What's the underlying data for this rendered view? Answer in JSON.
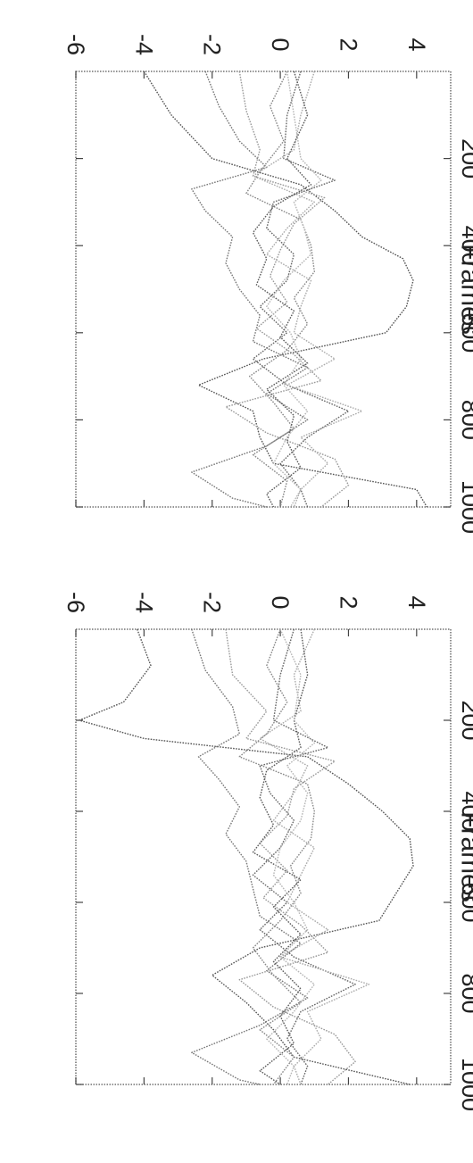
{
  "chart_data": [
    {
      "type": "line",
      "xlabel": "Frames",
      "ylabel": "",
      "xlim": [
        0,
        1000
      ],
      "ylim": [
        -6,
        5
      ],
      "xticks": [
        "200",
        "400",
        "600",
        "800",
        "1000"
      ],
      "yticks": [
        "-6",
        "-4",
        "-2",
        "0",
        "2",
        "4"
      ],
      "grid": false,
      "orientation": "rotated 90 degrees clockwise",
      "series": [
        {
          "color": "#555555",
          "x": [
            0,
            100,
            200,
            260,
            320,
            380,
            430,
            480,
            540,
            600,
            660,
            720,
            780,
            840,
            900,
            960,
            1000
          ],
          "y": [
            -4.0,
            -3.2,
            -2.0,
            0.6,
            1.6,
            2.4,
            3.6,
            3.9,
            3.7,
            3.1,
            -0.5,
            -2.4,
            -0.8,
            -0.6,
            -0.2,
            4.0,
            4.3
          ]
        },
        {
          "color": "#777777",
          "x": [
            0,
            80,
            160,
            220,
            270,
            320,
            380,
            440,
            500,
            560,
            620,
            680,
            740,
            800,
            860,
            920,
            980,
            1000
          ],
          "y": [
            -2.2,
            -1.8,
            -1.2,
            -0.4,
            -2.6,
            -2.2,
            -1.4,
            -1.6,
            -1.2,
            -0.6,
            -0.8,
            0.8,
            -0.4,
            0.8,
            -0.4,
            -2.6,
            -1.4,
            -0.4
          ]
        },
        {
          "color": "#999999",
          "x": [
            0,
            90,
            180,
            240,
            290,
            350,
            410,
            470,
            530,
            590,
            650,
            710,
            770,
            830,
            890,
            950,
            1000
          ],
          "y": [
            -1.2,
            -1.0,
            -0.6,
            -0.8,
            1.3,
            0.4,
            0.0,
            -0.3,
            0.2,
            -0.7,
            0.4,
            1.2,
            -1.6,
            -0.4,
            1.6,
            2.0,
            1.2
          ]
        },
        {
          "color": "#666666",
          "x": [
            0,
            100,
            200,
            250,
            300,
            360,
            420,
            480,
            540,
            600,
            660,
            720,
            780,
            840,
            900,
            960,
            1000
          ],
          "y": [
            0.6,
            0.2,
            0.1,
            1.6,
            -0.2,
            -0.4,
            0.4,
            0.2,
            -0.6,
            0.2,
            -0.8,
            0.2,
            2.0,
            0.8,
            0.0,
            0.6,
            0.8
          ]
        },
        {
          "color": "#888888",
          "x": [
            0,
            80,
            160,
            230,
            280,
            340,
            400,
            460,
            520,
            580,
            640,
            700,
            760,
            820,
            880,
            940,
            1000
          ],
          "y": [
            0.2,
            -0.3,
            0.1,
            -0.6,
            -1.0,
            0.6,
            0.9,
            1.0,
            0.4,
            0.8,
            0.2,
            -0.9,
            -0.2,
            0.4,
            -0.8,
            0.2,
            0.0
          ]
        },
        {
          "color": "#aaaaaa",
          "x": [
            0,
            100,
            180,
            240,
            300,
            360,
            420,
            480,
            540,
            600,
            660,
            720,
            780,
            840,
            900,
            960,
            1000
          ],
          "y": [
            1.0,
            0.6,
            0.4,
            -0.8,
            1.0,
            0.2,
            -0.4,
            0.9,
            0.6,
            0.4,
            1.6,
            0.2,
            2.4,
            0.6,
            1.4,
            0.6,
            0.4
          ]
        },
        {
          "color": "#5a5a5a",
          "x": [
            0,
            100,
            200,
            260,
            310,
            370,
            430,
            490,
            550,
            610,
            670,
            730,
            790,
            850,
            910,
            970,
            1000
          ],
          "y": [
            0.4,
            0.8,
            0.2,
            0.9,
            -0.2,
            -0.8,
            -0.4,
            -0.7,
            0.4,
            0.0,
            0.8,
            -0.4,
            0.4,
            0.2,
            0.6,
            -0.4,
            -0.2
          ]
        },
        {
          "color": "#b5b5b5",
          "x": [
            0,
            100,
            200,
            250,
            300,
            360,
            420,
            480,
            540,
            600,
            660,
            720,
            780,
            840,
            900,
            960,
            1000
          ],
          "y": [
            0.2,
            0.4,
            0.6,
            1.2,
            0.4,
            0.7,
            0.9,
            0.1,
            -0.4,
            0.3,
            0.6,
            0.1,
            0.8,
            0.2,
            -0.2,
            0.6,
            0.3
          ]
        }
      ]
    },
    {
      "type": "line",
      "xlabel": "Frames",
      "ylabel": "",
      "xlim": [
        0,
        1000
      ],
      "ylim": [
        -6,
        5
      ],
      "xticks": [
        "200",
        "400",
        "600",
        "800",
        "1000"
      ],
      "yticks": [
        "-6",
        "-4",
        "-2",
        "0",
        "2",
        "4"
      ],
      "grid": false,
      "orientation": "rotated 90 degrees clockwise",
      "series": [
        {
          "color": "#555555",
          "x": [
            0,
            80,
            160,
            200,
            240,
            280,
            340,
            400,
            460,
            520,
            580,
            640,
            700,
            760,
            820,
            880,
            940,
            1000
          ],
          "y": [
            -4.2,
            -3.8,
            -4.6,
            -5.9,
            -4.0,
            0.8,
            2.0,
            3.0,
            3.8,
            3.9,
            3.4,
            2.9,
            -0.6,
            -2.0,
            -1.0,
            -0.2,
            0.4,
            3.8
          ]
        },
        {
          "color": "#777777",
          "x": [
            0,
            90,
            170,
            230,
            280,
            330,
            390,
            450,
            510,
            570,
            630,
            690,
            750,
            810,
            870,
            930,
            990,
            1000
          ],
          "y": [
            -2.6,
            -2.2,
            -1.4,
            -1.2,
            -2.4,
            -1.8,
            -1.2,
            -1.6,
            -1.0,
            -0.8,
            -0.6,
            0.6,
            -0.4,
            0.8,
            -0.6,
            -2.6,
            -1.2,
            -0.6
          ]
        },
        {
          "color": "#999999",
          "x": [
            0,
            100,
            180,
            240,
            290,
            350,
            410,
            470,
            530,
            590,
            650,
            710,
            770,
            830,
            890,
            950,
            1000
          ],
          "y": [
            -1.6,
            -1.4,
            -0.4,
            -1.0,
            1.6,
            0.4,
            0.2,
            -0.6,
            0.2,
            -0.5,
            0.6,
            1.4,
            -1.2,
            -0.2,
            1.6,
            2.2,
            1.4
          ]
        },
        {
          "color": "#666666",
          "x": [
            0,
            100,
            200,
            260,
            300,
            360,
            420,
            480,
            540,
            600,
            660,
            720,
            780,
            840,
            900,
            960,
            1000
          ],
          "y": [
            0.4,
            0.0,
            -0.2,
            1.4,
            -0.6,
            -0.3,
            0.4,
            0.0,
            -0.8,
            0.2,
            -0.6,
            0.4,
            2.2,
            0.6,
            0.2,
            0.8,
            0.6
          ]
        },
        {
          "color": "#888888",
          "x": [
            0,
            80,
            160,
            230,
            280,
            340,
            400,
            460,
            520,
            580,
            640,
            700,
            760,
            820,
            880,
            940,
            1000
          ],
          "y": [
            0.0,
            -0.4,
            0.2,
            -0.4,
            -1.2,
            0.8,
            1.0,
            0.9,
            0.3,
            0.6,
            0.0,
            -0.8,
            -0.2,
            0.6,
            -0.6,
            0.4,
            -0.2
          ]
        },
        {
          "color": "#aaaaaa",
          "x": [
            0,
            100,
            180,
            240,
            300,
            360,
            420,
            480,
            540,
            600,
            660,
            720,
            780,
            840,
            900,
            960,
            1000
          ],
          "y": [
            1.0,
            0.4,
            0.6,
            -0.6,
            0.8,
            0.4,
            -0.2,
            1.0,
            0.6,
            0.2,
            1.4,
            0.0,
            2.6,
            0.8,
            1.2,
            0.4,
            0.6
          ]
        },
        {
          "color": "#5a5a5a",
          "x": [
            0,
            100,
            200,
            260,
            310,
            370,
            430,
            490,
            550,
            610,
            670,
            730,
            790,
            850,
            910,
            970,
            1000
          ],
          "y": [
            0.6,
            0.8,
            0.4,
            0.6,
            -0.4,
            -0.6,
            -0.2,
            -0.8,
            0.6,
            -0.2,
            0.6,
            -0.2,
            0.6,
            0.0,
            0.4,
            -0.6,
            0.0
          ]
        },
        {
          "color": "#b5b5b5",
          "x": [
            0,
            100,
            200,
            250,
            300,
            360,
            420,
            480,
            540,
            600,
            660,
            720,
            780,
            840,
            900,
            960,
            1000
          ],
          "y": [
            0.0,
            0.6,
            0.4,
            1.0,
            0.2,
            0.8,
            0.6,
            0.0,
            -0.2,
            0.4,
            0.8,
            0.0,
            1.0,
            0.4,
            -0.4,
            0.4,
            0.2
          ]
        }
      ]
    }
  ]
}
